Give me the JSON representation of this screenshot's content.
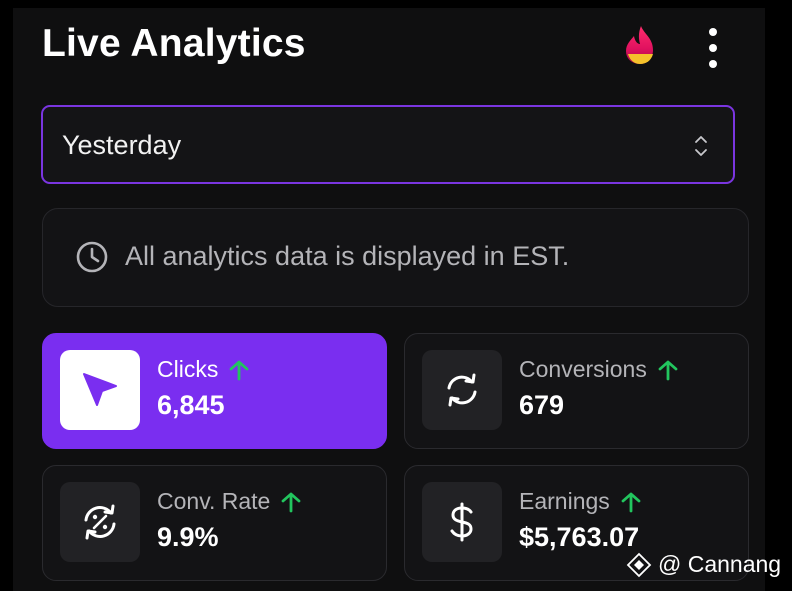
{
  "header": {
    "title": "Live Analytics",
    "fire_icon": "fire-icon",
    "menu_icon": "more-vertical-icon"
  },
  "date_select": {
    "value": "Yesterday",
    "icon": "chevron-up-down-icon"
  },
  "notice": {
    "icon": "clock-icon",
    "text": "All analytics data is displayed in EST."
  },
  "stats": [
    {
      "label": "Clicks",
      "value": "6,845",
      "icon": "cursor-arrow-icon",
      "trend": "up",
      "active": true
    },
    {
      "label": "Conversions",
      "value": "679",
      "icon": "refresh-icon",
      "trend": "up",
      "active": false
    },
    {
      "label": "Conv. Rate",
      "value": "9.9%",
      "icon": "percent-refresh-icon",
      "trend": "up",
      "active": false
    },
    {
      "label": "Earnings",
      "value": "$5,763.07",
      "icon": "dollar-icon",
      "trend": "up",
      "active": false
    }
  ],
  "colors": {
    "accent": "#7a2ef0",
    "trend_up": "#22c55e",
    "background": "#0f0f10",
    "card": "#131315"
  },
  "watermark": {
    "text": "@ Cannang"
  }
}
